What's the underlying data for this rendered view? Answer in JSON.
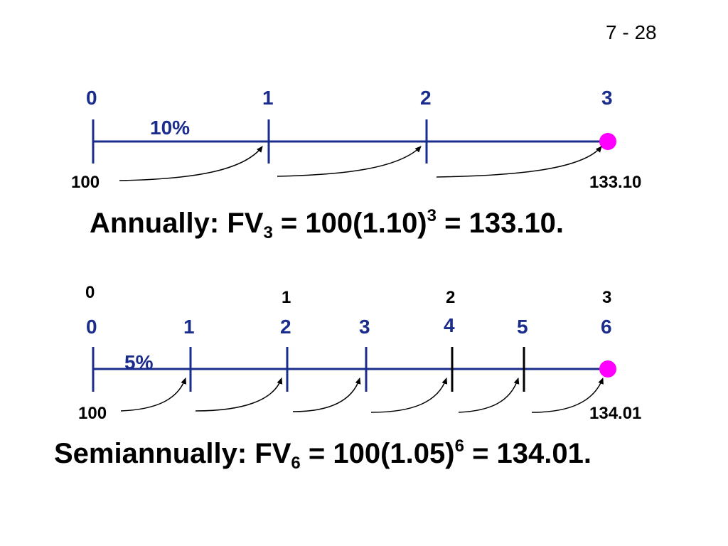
{
  "slide_number": "7 - 28",
  "colors": {
    "line": "#1a2c8c",
    "marker": "#ff00ff",
    "arrow": "#000000",
    "text": "#000000"
  },
  "annual": {
    "period_labels": [
      "0",
      "1",
      "2",
      "3"
    ],
    "rate": "10%",
    "pv": "100",
    "fv": "133.10",
    "formula": {
      "prefix": "Annually:  FV",
      "sub": "3",
      "mid": " = 100(1.10)",
      "sup": "3",
      "suffix": " = 133.10."
    }
  },
  "semiannual": {
    "year_labels": [
      "0",
      "1",
      "2",
      "3"
    ],
    "period_labels": [
      "0",
      "1",
      "2",
      "3",
      "4",
      "5",
      "6"
    ],
    "rate": "5%",
    "pv": "100",
    "fv": "134.01",
    "formula": {
      "prefix": "Semiannually:  FV",
      "sub": "6",
      "mid": " = 100(1.05)",
      "sup": "6",
      "suffix": " = 134.01."
    }
  }
}
